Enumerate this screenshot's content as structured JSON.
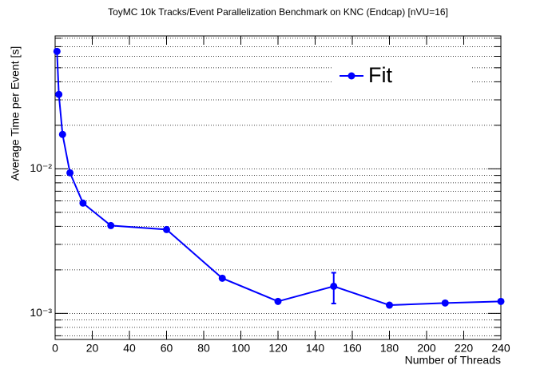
{
  "chart_data": {
    "type": "line",
    "title": "ToyMC 10k Tracks/Event Parallelization Benchmark on KNC (Endcap) [nVU=16]",
    "x_label": "Number of Threads",
    "y_label": "Average Time per Event [s]",
    "x": [
      1,
      2,
      4,
      8,
      15,
      30,
      60,
      90,
      120,
      150,
      180,
      210,
      240
    ],
    "series": [
      {
        "name": "Fit",
        "color": "#0000ff",
        "values": [
          0.0649,
          0.0327,
          0.0173,
          0.00938,
          0.00579,
          0.00405,
          0.0038,
          0.00175,
          0.00121,
          0.00154,
          0.00114,
          0.00118,
          0.00121
        ],
        "errors": [
          null,
          null,
          null,
          null,
          null,
          null,
          null,
          null,
          null,
          0.00037,
          null,
          null,
          null
        ]
      }
    ],
    "xlim": [
      0,
      240
    ],
    "xticks": [
      0,
      20,
      40,
      60,
      80,
      100,
      120,
      140,
      160,
      180,
      200,
      220,
      240
    ],
    "ylim": [
      0.00066,
      0.083
    ],
    "yscale": "log",
    "yticks": [
      {
        "value": 0.001,
        "label": "10⁻³"
      },
      {
        "value": 0.01,
        "label": "10⁻²"
      }
    ],
    "minor_yticks": [
      0.0007,
      0.0008,
      0.0009,
      0.002,
      0.003,
      0.004,
      0.005,
      0.006,
      0.007,
      0.008,
      0.009,
      0.02,
      0.03,
      0.04,
      0.05,
      0.06,
      0.07,
      0.08
    ],
    "grid": true,
    "legend": "upper right"
  }
}
